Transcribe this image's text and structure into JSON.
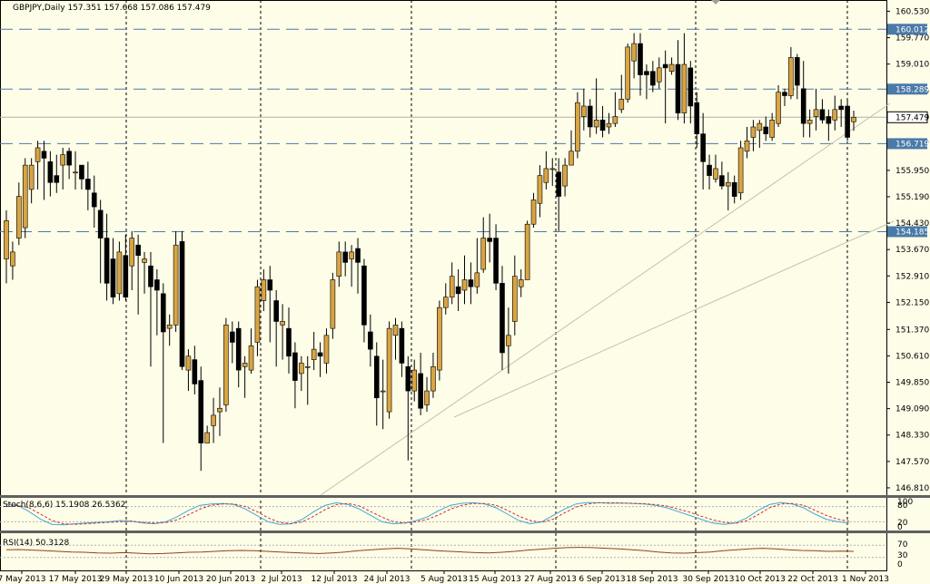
{
  "chart_data": {
    "type": "candlestick",
    "title": "GBPJPY,Daily",
    "header": {
      "title": "GBPJPY,Daily",
      "open": "157.351",
      "high": "157.668",
      "low": "157.086",
      "close": "157.479"
    },
    "price_ticks": [
      "160.530",
      "159.770",
      "159.010",
      "158.250",
      "157.490",
      "156.730",
      "155.950",
      "155.190",
      "154.430",
      "153.670",
      "152.910",
      "152.150",
      "151.370",
      "150.610",
      "149.850",
      "149.090",
      "148.330",
      "147.570",
      "146.810"
    ],
    "ylim": [
      146.6,
      160.75
    ],
    "date_labels": [
      "7 May 2013",
      "17 May 2013",
      "29 May 2013",
      "10 Jun 2013",
      "20 Jun 2013",
      "2 Jul 2013",
      "12 Jul 2013",
      "24 Jul 2013",
      "5 Aug 2013",
      "15 Aug 2013",
      "27 Aug 2013",
      "6 Sep 2013",
      "18 Sep 2013",
      "30 Sep 2013",
      "10 Oct 2013",
      "22 Oct 2013",
      "1 Nov 2013"
    ],
    "levels": [
      {
        "label": "160.012",
        "value": 160.012
      },
      {
        "label": "158.289",
        "value": 158.289
      },
      {
        "label": "156.719",
        "value": 156.719
      },
      {
        "label": "154.185",
        "value": 154.185
      }
    ],
    "current_price": {
      "label": "157.479",
      "value": 157.479
    },
    "stochastic": {
      "label": "Stoch(8,6,6) 15.1908 26.5362",
      "axis": [
        "100",
        "80",
        "20",
        "0"
      ]
    },
    "rsi": {
      "label": "RSI(14) 50.3128",
      "axis": [
        "70",
        "30",
        "0"
      ]
    },
    "colors": {
      "up": "#d9a441",
      "down": "#000000",
      "background": "#fefde8",
      "level": "#4a7aa8",
      "trend": "#c8c0a8",
      "stoch_main": "#3fa9d8",
      "stoch_signal": "#c83232",
      "rsi": "#8b4513"
    }
  }
}
